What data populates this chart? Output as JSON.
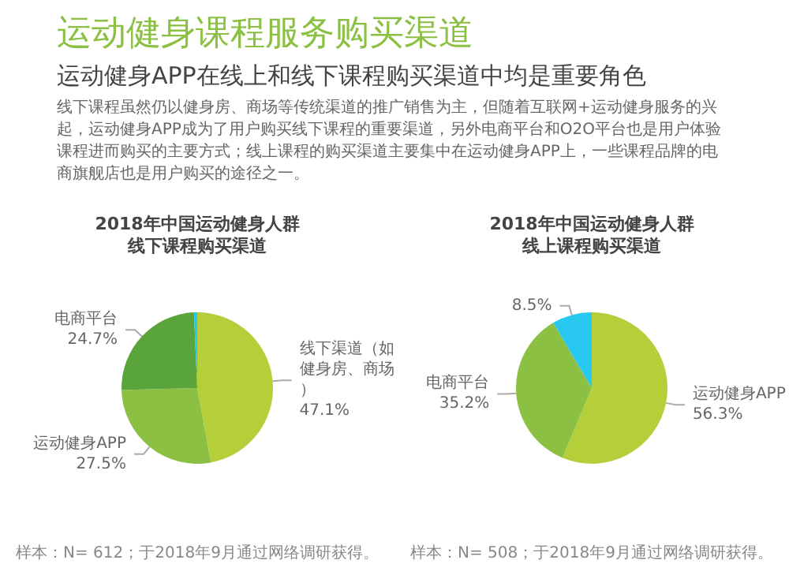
{
  "chart_data": [
    {
      "type": "other",
      "title": "运动健身课程服务购买渠道",
      "subtitle": "运动健身APP在线上和线下课程购买渠道中均是重要角色",
      "annotations": [
        "线下课程虽然仍以健身房、商场等传统渠道的推广销售为主，但随着互联网+运动健身服务的兴起，运动健身APP成为了用户购买线下课程的重要渠道，另外电商平台和O2O平台也是用户体验课程进而购买的主要方式；线上课程的购买渠道主要集中在运动健身APP上，一些课程品牌的电商旗舰店也是用户购买的途径之一。"
      ]
    },
    {
      "type": "pie",
      "title": "2018年中国运动健身人群线下课程购买渠道",
      "categories": [
        "线下渠道（如健身房、商场）",
        "运动健身APP",
        "电商平台",
        null
      ],
      "values": [
        47.1,
        27.5,
        24.7,
        0.7
      ],
      "colors": [
        "#b5cf3a",
        "#8cc043",
        "#5aa43c",
        "#29c6e8"
      ],
      "value_labels": [
        "47.1%",
        "27.5%",
        "24.7%",
        null
      ],
      "annotations": [
        "样本：N= 612；于2018年9月通过网络调研获得。"
      ]
    },
    {
      "type": "pie",
      "title": "2018年中国运动健身人群线上课程购买渠道",
      "categories": [
        "运动健身APP",
        "电商平台",
        null
      ],
      "values": [
        56.3,
        35.2,
        8.5
      ],
      "colors": [
        "#b5cf3a",
        "#8cc043",
        "#29c8f0"
      ],
      "value_labels": [
        "56.3%",
        "35.2%",
        "8.5%"
      ],
      "annotations": [
        "样本：N= 508；于2018年9月通过网络调研获得。"
      ]
    }
  ]
}
